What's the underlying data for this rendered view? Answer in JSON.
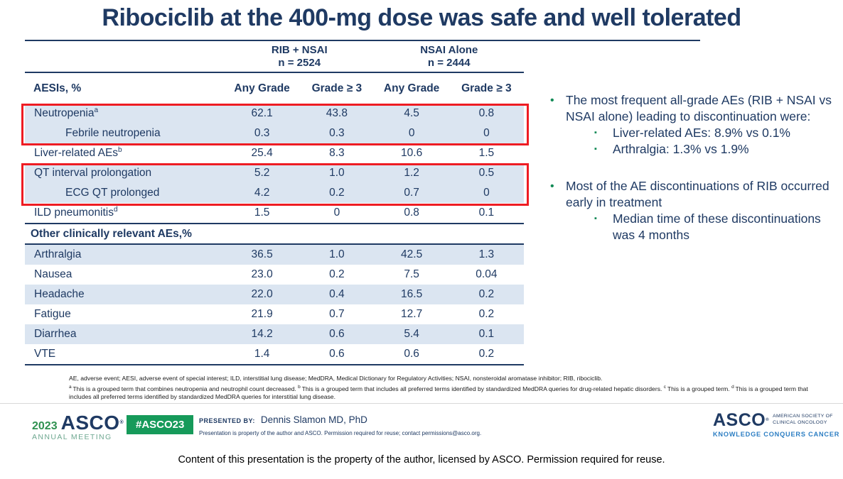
{
  "title": "Ribociclib at the 400-mg dose was safe and well tolerated",
  "table": {
    "group_headers": [
      {
        "label": "RIB + NSAI",
        "n": "n = 2524"
      },
      {
        "label": "NSAI Alone",
        "n": "n = 2444"
      }
    ],
    "col_headers": [
      "AESIs, %",
      "Any Grade",
      "Grade ≥ 3",
      "Any Grade",
      "Grade ≥ 3"
    ],
    "rows": [
      {
        "label": "Neutropenia",
        "sup": "a",
        "shade": "blue",
        "values": [
          "62.1",
          "43.8",
          "4.5",
          "0.8"
        ]
      },
      {
        "label": "Febrile neutropenia",
        "indent": true,
        "shade": "blue",
        "values": [
          "0.3",
          "0.3",
          "0",
          "0"
        ]
      },
      {
        "label": "Liver-related AEs",
        "sup": "b",
        "shade": "white",
        "values": [
          "25.4",
          "8.3",
          "10.6",
          "1.5"
        ]
      },
      {
        "label": "QT interval prolongation",
        "shade": "blue",
        "values": [
          "5.2",
          "1.0",
          "1.2",
          "0.5"
        ]
      },
      {
        "label": "ECG QT prolonged",
        "indent": true,
        "shade": "blue",
        "values": [
          "4.2",
          "0.2",
          "0.7",
          "0"
        ]
      },
      {
        "label": "ILD pneumonitis",
        "sup": "d",
        "shade": "white",
        "values": [
          "1.5",
          "0",
          "0.8",
          "0.1"
        ]
      },
      {
        "label": "Other clinically relevant AEs,%",
        "section": true
      },
      {
        "label": "Arthralgia",
        "shade": "blue",
        "values": [
          "36.5",
          "1.0",
          "42.5",
          "1.3"
        ]
      },
      {
        "label": "Nausea",
        "shade": "white",
        "values": [
          "23.0",
          "0.2",
          "7.5",
          "0.04"
        ]
      },
      {
        "label": "Headache",
        "shade": "blue",
        "values": [
          "22.0",
          "0.4",
          "16.5",
          "0.2"
        ]
      },
      {
        "label": "Fatigue",
        "shade": "white",
        "values": [
          "21.9",
          "0.7",
          "12.7",
          "0.2"
        ]
      },
      {
        "label": "Diarrhea",
        "shade": "blue",
        "values": [
          "14.2",
          "0.6",
          "5.4",
          "0.1"
        ]
      },
      {
        "label": "VTE",
        "shade": "white",
        "values": [
          "1.4",
          "0.6",
          "0.6",
          "0.2"
        ]
      }
    ]
  },
  "bullets": [
    {
      "text": "The most frequent all-grade AEs (RIB + NSAI vs NSAI alone) leading to discontinuation were:",
      "subs": [
        "Liver-related AEs: 8.9% vs 0.1%",
        "Arthralgia: 1.3% vs 1.9%"
      ]
    },
    {
      "text": "Most of the AE discontinuations of RIB occurred early in treatment",
      "subs": [
        "Median time of these discontinuations was 4 months"
      ]
    }
  ],
  "footnotes": {
    "abbreviations": "AE, adverse event; AESI, adverse event of special interest; ILD, interstitial lung disease; MedDRA, Medical Dictionary for Regulatory Activities; NSAI, nonsteroidal aromatase inhibitor; RIB, ribociclib.",
    "items": [
      {
        "sup": "a",
        "text": "This is a grouped term that combines neutropenia and neutrophil count decreased."
      },
      {
        "sup": "b",
        "text": "This is a grouped term that includes all preferred terms identified by standardized MedDRA queries for drug-related hepatic disorders."
      },
      {
        "sup": "c",
        "text": "This is a grouped term."
      },
      {
        "sup": "d",
        "text": "This is a grouped term that includes all preferred terms identified by standardized MedDRA queries for interstitial lung disease."
      }
    ]
  },
  "footer": {
    "year": "2023",
    "asco": "ASCO",
    "reg": "®",
    "annual_meeting": "ANNUAL MEETING",
    "hashtag": "#ASCO23",
    "presented_label": "PRESENTED BY:",
    "presenter": "Dennis Slamon MD, PhD",
    "property_line": "Presentation is property of the author and ASCO. Permission required for reuse; contact permissions@asco.org.",
    "asco_right": "ASCO",
    "society_line1": "AMERICAN SOCIETY OF",
    "society_line2": "CLINICAL ONCOLOGY",
    "tagline": "KNOWLEDGE CONQUERS CANCER"
  },
  "copyright": "Content of this presentation is the property of the author, licensed by ASCO. Permission required for reuse.",
  "colors": {
    "navy": "#1F3A63",
    "row_blue": "#DBE5F1",
    "red": "#EE1C23",
    "bullet_green": "#128A56",
    "badge_green": "#169A5A",
    "year_green": "#2F9150",
    "annual_green": "#6FA891",
    "tagline_blue": "#2C7EC3",
    "fn_black": "#1a1a1a"
  }
}
